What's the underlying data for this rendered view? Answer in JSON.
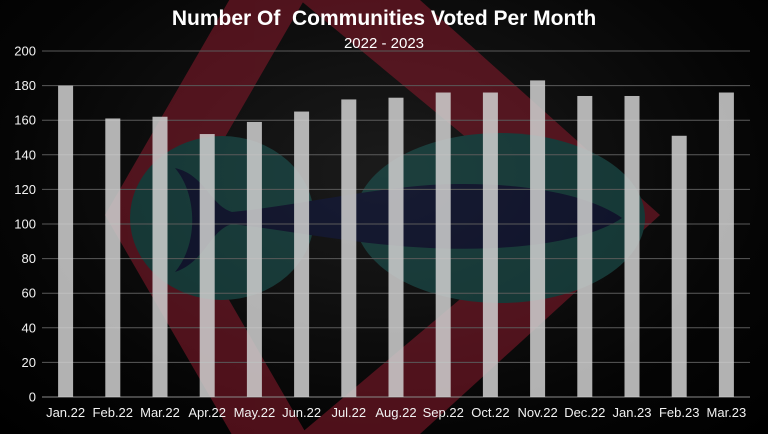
{
  "chart_data": {
    "type": "bar",
    "title": "Number Of  Communities Voted Per Month",
    "subtitle": "2022 - 2023",
    "xlabel": "",
    "ylabel": "",
    "categories": [
      "Jan.22",
      "Feb.22",
      "Mar.22",
      "Apr.22",
      "May.22",
      "Jun.22",
      "Jul.22",
      "Aug.22",
      "Sep.22",
      "Oct.22",
      "Nov.22",
      "Dec.22",
      "Jan.23",
      "Feb.23",
      "Mar.23"
    ],
    "values": [
      180,
      161,
      162,
      152,
      159,
      165,
      172,
      173,
      176,
      176,
      183,
      174,
      174,
      151,
      176
    ],
    "ylim": [
      0,
      200
    ],
    "yticks": [
      0,
      20,
      40,
      60,
      80,
      100,
      120,
      140,
      160,
      180,
      200
    ],
    "grid": true,
    "legend": "none",
    "bar_color": "#cfcfcf",
    "background_color": "#000000",
    "watermark_colors": [
      "#8a1a2c",
      "#1f5d5a",
      "#141b45"
    ]
  }
}
